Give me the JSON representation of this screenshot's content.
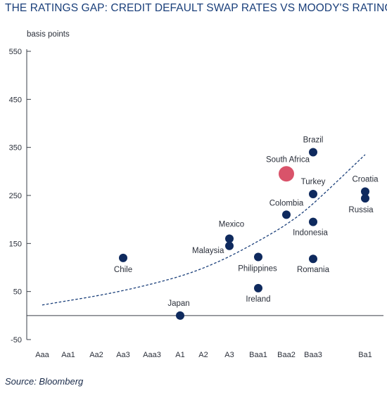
{
  "title": "THE RATINGS GAP: CREDIT DEFAULT SWAP RATES VS MOODY'S RATINGS",
  "source": "Source: Bloomberg",
  "chart_data": {
    "type": "scatter",
    "title": "THE RATINGS GAP: CREDIT DEFAULT SWAP RATES VS MOODY'S RATINGS",
    "ylabel": "basis points",
    "xlabel": "",
    "ylim": [
      -50,
      550
    ],
    "yticks": [
      550,
      450,
      350,
      250,
      150,
      50,
      -50
    ],
    "categories": [
      "Aaa",
      "Aa1",
      "Aa2",
      "Aa3",
      "Aaa3",
      "A1",
      "A2",
      "A3",
      "Baa1",
      "Baa2",
      "Baa3",
      "Ba1"
    ],
    "grid": false,
    "series": [
      {
        "color": "#0f2a5e",
        "points": [
          {
            "label": "Brazil",
            "x": "Baa3",
            "y": 340
          },
          {
            "label": "Turkey",
            "x": "Baa3",
            "y": 253
          },
          {
            "label": "Colombia",
            "x": "Baa2",
            "y": 210
          },
          {
            "label": "Indonesia",
            "x": "Baa3",
            "y": 195
          },
          {
            "label": "Croatia",
            "x": "Ba1",
            "y": 258
          },
          {
            "label": "Russia",
            "x": "Ba1",
            "y": 244
          },
          {
            "label": "Mexico",
            "x": "A3",
            "y": 160
          },
          {
            "label": "Malaysia",
            "x": "A3",
            "y": 145
          },
          {
            "label": "Philippines",
            "x": "Baa1",
            "y": 122
          },
          {
            "label": "Romania",
            "x": "Baa3",
            "y": 118
          },
          {
            "label": "Chile",
            "x": "Aa3",
            "y": 120
          },
          {
            "label": "Ireland",
            "x": "Baa1",
            "y": 57
          },
          {
            "label": "Japan",
            "x": "A1",
            "y": 0
          }
        ]
      },
      {
        "color": "#d9536a",
        "points": [
          {
            "label": "South Africa",
            "x": "Baa2",
            "y": 295
          }
        ]
      }
    ],
    "trend": {
      "style": "dashed",
      "color": "#1a3f7a",
      "points": [
        {
          "x": "Aaa",
          "y": 22
        },
        {
          "x": "Aa1",
          "y": 31
        },
        {
          "x": "Aa2",
          "y": 41
        },
        {
          "x": "Aa3",
          "y": 52
        },
        {
          "x": "Aaa3",
          "y": 66
        },
        {
          "x": "A1",
          "y": 82
        },
        {
          "x": "A2",
          "y": 99
        },
        {
          "x": "A3",
          "y": 123
        },
        {
          "x": "Baa1",
          "y": 155
        },
        {
          "x": "Baa2",
          "y": 190
        },
        {
          "x": "Baa3",
          "y": 233
        },
        {
          "x": "Ba1",
          "y": 335
        }
      ]
    }
  }
}
